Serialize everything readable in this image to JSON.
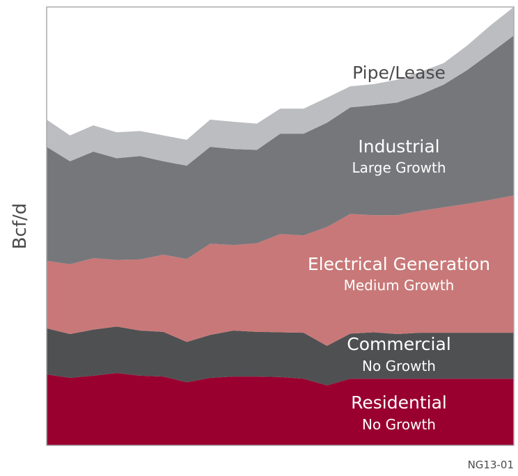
{
  "chart_data": {
    "type": "area",
    "stacked": true,
    "title": "",
    "xlabel": "",
    "ylabel": "Bcf/d",
    "chart_id": "NG13-01",
    "grid": false,
    "legend": "inline-labels",
    "x": [
      1,
      2,
      3,
      4,
      5,
      6,
      7,
      8,
      9,
      10,
      11,
      12,
      13,
      14,
      15,
      16,
      17,
      18,
      19,
      20,
      21
    ],
    "ylim": [
      0,
      100
    ],
    "series": [
      {
        "name": "Residential",
        "note": "No Growth",
        "color": "#990030",
        "label_style": "light",
        "values": [
          16.2,
          15.4,
          15.9,
          16.5,
          15.9,
          15.7,
          14.4,
          15.4,
          15.7,
          15.7,
          15.6,
          15.2,
          13.7,
          15.2,
          15.2,
          15.2,
          15.2,
          15.2,
          15.2,
          15.2,
          15.2
        ]
      },
      {
        "name": "Commercial",
        "note": "No Growth",
        "color": "#4f5052",
        "label_style": "light",
        "values": [
          10.5,
          10.0,
          10.5,
          10.6,
          10.3,
          10.2,
          9.2,
          9.8,
          10.5,
          10.2,
          10.2,
          10.5,
          9.0,
          10.3,
          10.6,
          10.2,
          10.5,
          10.5,
          10.5,
          10.5,
          10.5
        ]
      },
      {
        "name": "Electrical Generation",
        "note": "Medium Growth",
        "color": "#c87878",
        "label_style": "light",
        "values": [
          15.4,
          15.9,
          16.3,
          15.2,
          16.2,
          17.6,
          18.9,
          20.8,
          19.5,
          20.2,
          22.4,
          22.2,
          27.1,
          27.3,
          26.7,
          27.1,
          27.8,
          28.6,
          29.4,
          30.3,
          31.3
        ]
      },
      {
        "name": "Industrial",
        "note": "Large Growth",
        "color": "#76777b",
        "label_style": "light",
        "values": [
          26.0,
          23.5,
          24.3,
          23.2,
          23.6,
          21.3,
          21.3,
          22.1,
          21.9,
          21.3,
          22.9,
          23.2,
          23.8,
          24.3,
          25.1,
          25.7,
          26.5,
          28.0,
          30.5,
          33.5,
          36.5
        ]
      },
      {
        "name": "Pipe/Lease",
        "note": "",
        "color": "#bcbdc0",
        "label_style": "dark",
        "values": [
          6.2,
          5.9,
          6.0,
          5.9,
          5.7,
          5.9,
          5.9,
          6.2,
          6.2,
          6.0,
          5.7,
          5.7,
          5.7,
          4.8,
          4.8,
          5.2,
          5.2,
          4.9,
          5.6,
          6.3,
          6.5
        ]
      }
    ]
  }
}
